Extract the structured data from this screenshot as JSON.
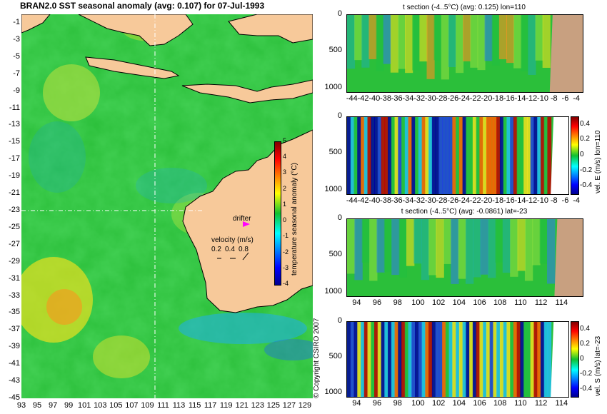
{
  "map": {
    "title": "BRAN2.0 SST seasonal anomaly (avg: 0.107) for 07-Jul-1993",
    "x_ticks": [
      "93",
      "95",
      "97",
      "99",
      "101",
      "103",
      "105",
      "107",
      "109",
      "111",
      "113",
      "115",
      "117",
      "119",
      "121",
      "123",
      "125",
      "127",
      "129"
    ],
    "y_ticks": [
      "-1",
      "-3",
      "-5",
      "-7",
      "-9",
      "-11",
      "-13",
      "-15",
      "-17",
      "-19",
      "-21",
      "-23",
      "-25",
      "-27",
      "-29",
      "-31",
      "-33",
      "-35",
      "-37",
      "-39",
      "-41",
      "-43",
      "-45"
    ],
    "colorbar_label": "temperature seasonal anomaly (°C)",
    "colorbar_ticks": [
      "5",
      "4",
      "3",
      "2",
      "1",
      "0",
      "-1",
      "-2",
      "-3",
      "-4"
    ],
    "drifter_label": "drifter",
    "velocity_label": "velocity (m/s)",
    "velocity_scale": [
      "0.2",
      "0.4",
      "0.8"
    ],
    "copyright": "© Copyright CSIRO 2007",
    "crosshair": {
      "lon": 110,
      "lat": -23
    }
  },
  "panels": [
    {
      "title": "t section (-4..5°C) (avg: 0.125) lon=110",
      "x_ticks": [
        "-44",
        "-42",
        "-40",
        "-38",
        "-36",
        "-34",
        "-32",
        "-30",
        "-28",
        "-26",
        "-24",
        "-22",
        "-20",
        "-18",
        "-16",
        "-14",
        "-12",
        "-10",
        "-8",
        "-6",
        "-4"
      ],
      "y_ticks": [
        "0",
        "500",
        "1000"
      ],
      "colorbar": null
    },
    {
      "title": "",
      "x_ticks": [
        "-44",
        "-42",
        "-40",
        "-38",
        "-36",
        "-34",
        "-32",
        "-30",
        "-28",
        "-26",
        "-24",
        "-22",
        "-20",
        "-18",
        "-16",
        "-14",
        "-12",
        "-10",
        "-8",
        "-6",
        "-4"
      ],
      "y_ticks": [
        "0",
        "500",
        "1000"
      ],
      "colorbar": {
        "label": "vel. E (m/s) lon=110",
        "ticks": [
          "0.4",
          "0.2",
          "0",
          "-0.2",
          "-0.4"
        ]
      }
    },
    {
      "title": "t section (-4..5°C) (avg: -0.0861) lat=-23",
      "x_ticks": [
        "94",
        "96",
        "98",
        "100",
        "102",
        "104",
        "106",
        "108",
        "110",
        "112",
        "114"
      ],
      "y_ticks": [
        "0",
        "500",
        "1000"
      ],
      "colorbar": null
    },
    {
      "title": "",
      "x_ticks": [
        "94",
        "96",
        "98",
        "100",
        "102",
        "104",
        "106",
        "108",
        "110",
        "112",
        "114"
      ],
      "y_ticks": [
        "0",
        "500",
        "1000"
      ],
      "colorbar": {
        "label": "vel. S (m/s) lat=-23",
        "ticks": [
          "0.4",
          "0.2",
          "0",
          "-0.2",
          "-0.4"
        ]
      }
    }
  ],
  "chart_data": [
    {
      "type": "heatmap",
      "title": "BRAN2.0 SST seasonal anomaly (avg: 0.107) for 07-Jul-1993",
      "xlim": [
        93,
        130
      ],
      "ylim": [
        -45,
        0
      ],
      "colorbar": {
        "label": "temperature seasonal anomaly (°C)",
        "range": [
          -4,
          5
        ]
      }
    },
    {
      "type": "heatmap",
      "title": "t section (-4..5°C) (avg: 0.125) lon=110",
      "xlim": [
        -45,
        -3
      ],
      "ylim": [
        1050,
        0
      ]
    },
    {
      "type": "heatmap",
      "xlim": [
        -45,
        -3
      ],
      "ylim": [
        1050,
        0
      ],
      "colorbar": {
        "label": "vel. E (m/s) lon=110",
        "range": [
          -0.5,
          0.5
        ]
      }
    },
    {
      "type": "heatmap",
      "title": "t section (-4..5°C) (avg: -0.0861) lat=-23",
      "xlim": [
        93,
        116
      ],
      "ylim": [
        1050,
        0
      ]
    },
    {
      "type": "heatmap",
      "xlim": [
        93,
        116
      ],
      "ylim": [
        1050,
        0
      ],
      "colorbar": {
        "label": "vel. S (m/s) lat=-23",
        "range": [
          -0.5,
          0.5
        ]
      }
    }
  ]
}
